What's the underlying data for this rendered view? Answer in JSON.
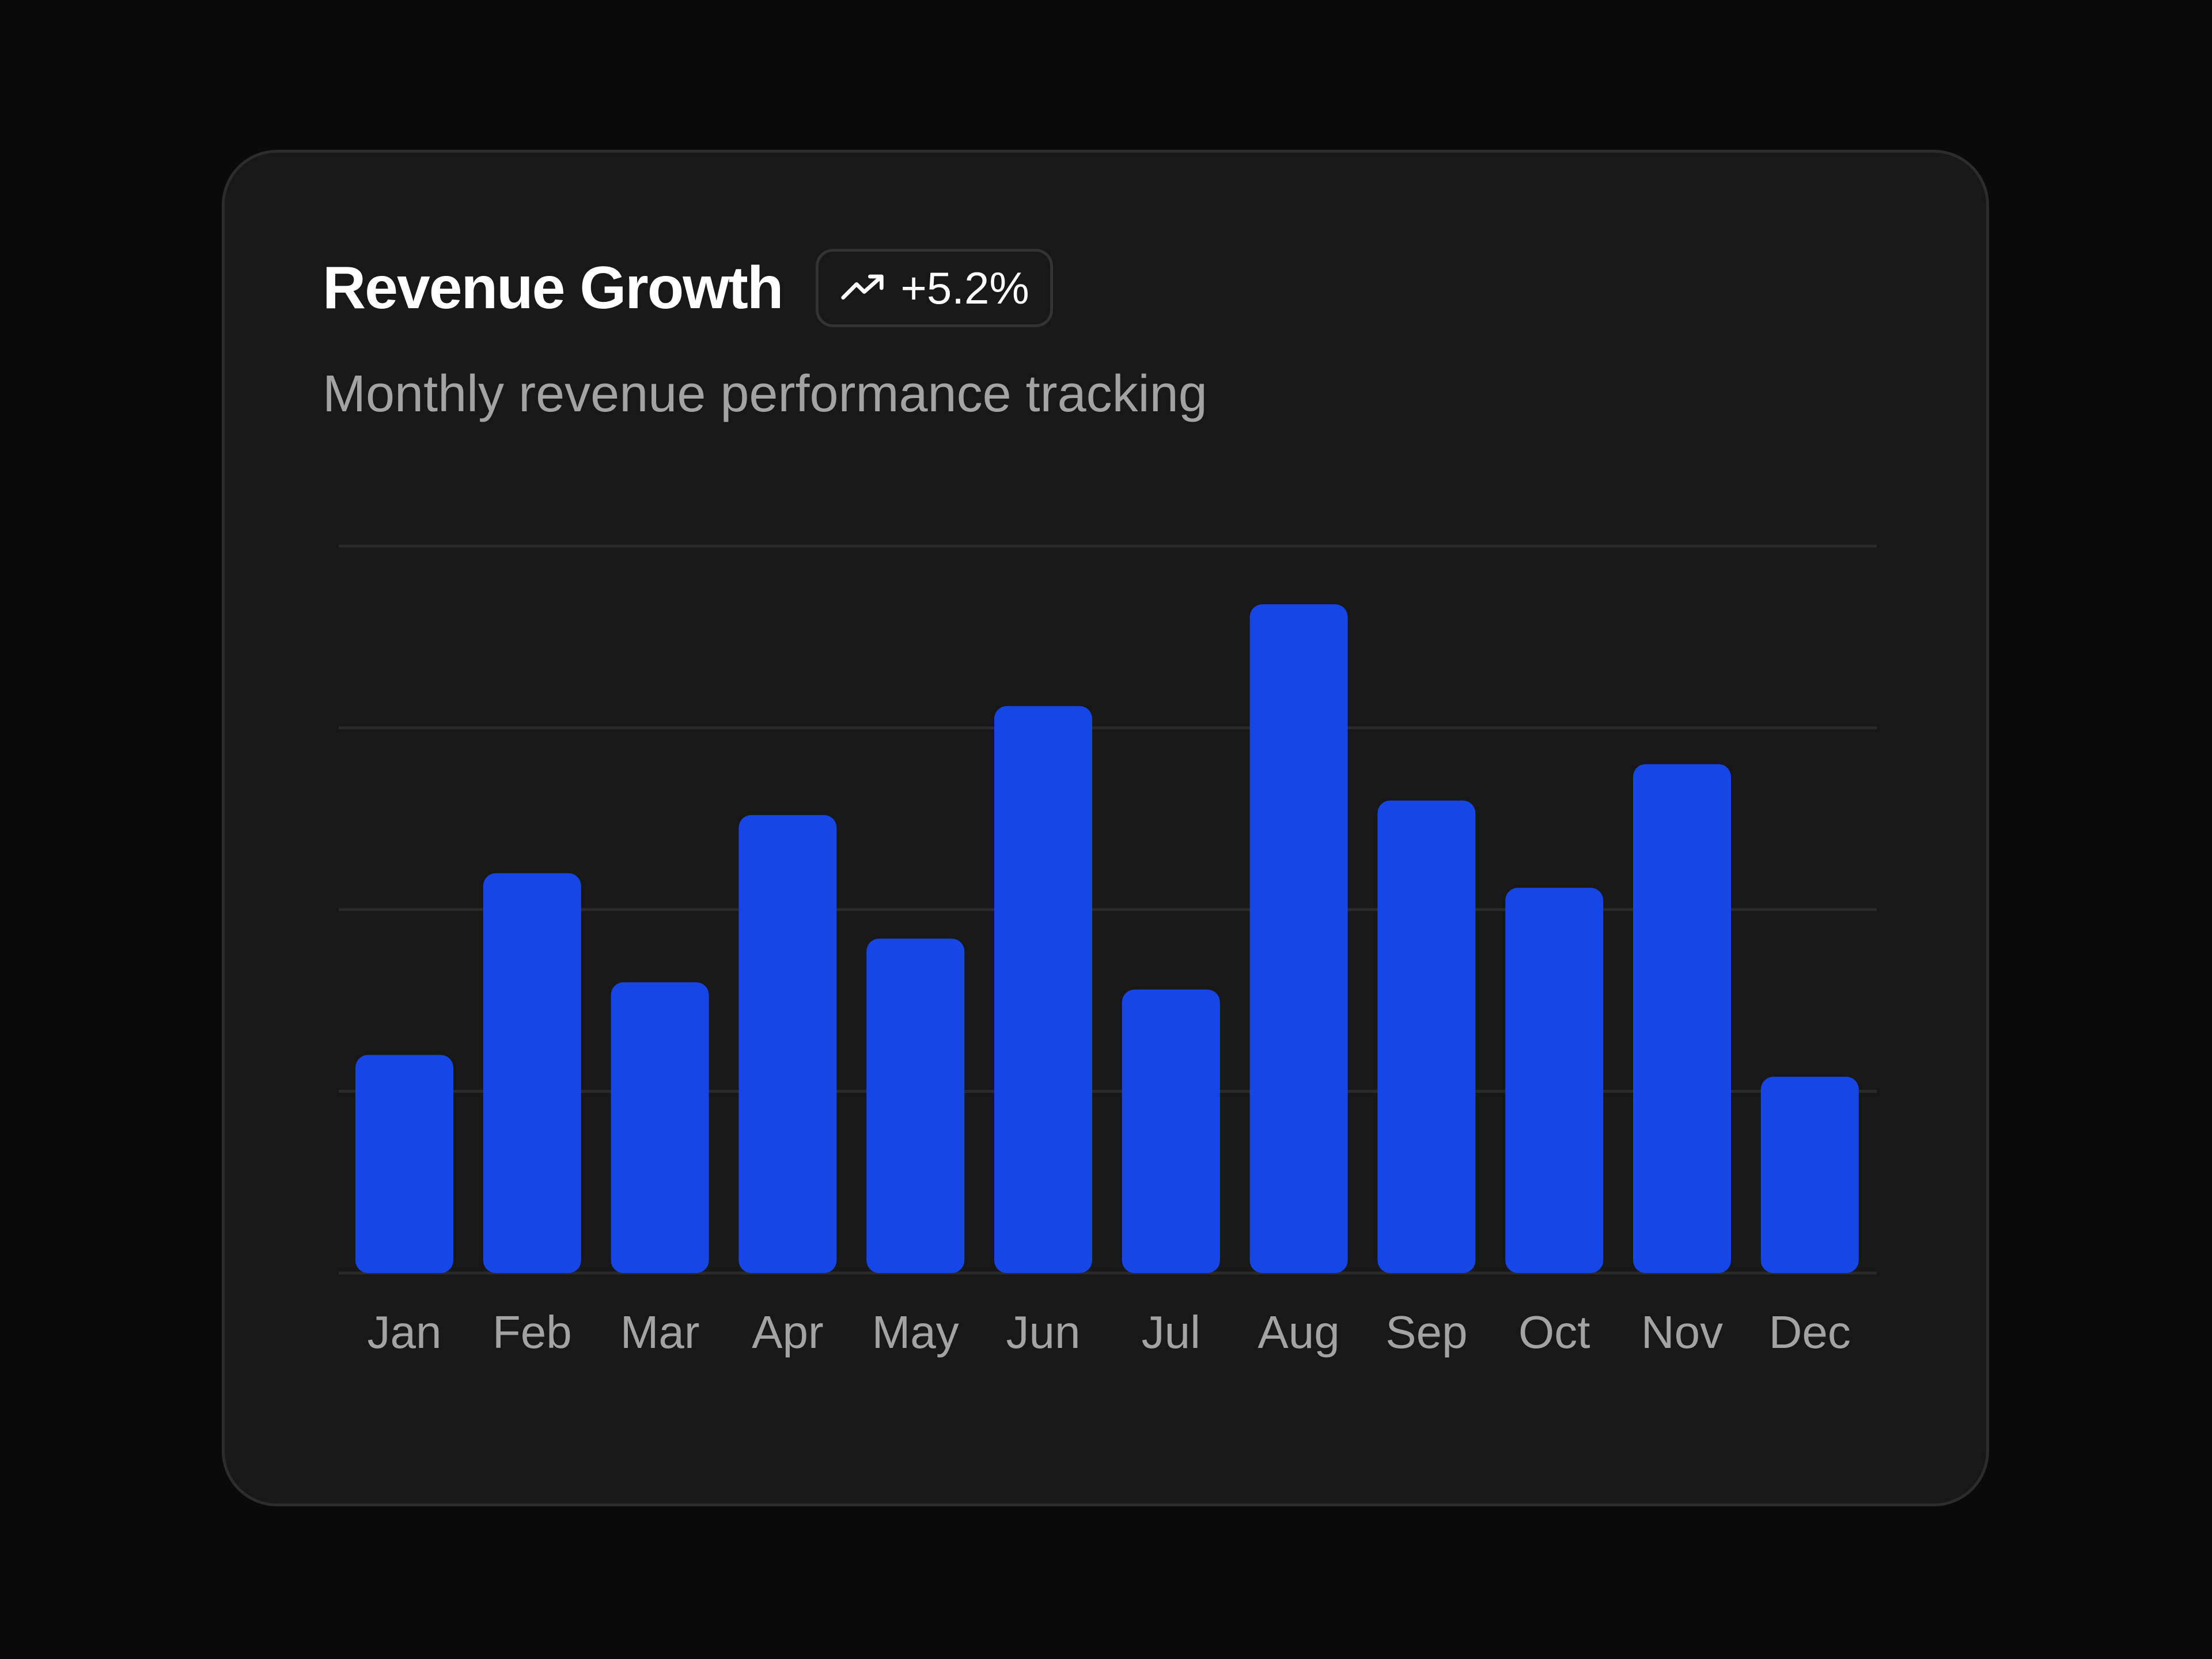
{
  "card": {
    "title": "Revenue Growth",
    "badge": {
      "text": "+5.2%",
      "icon": "trending-up-icon"
    },
    "subtitle": "Monthly revenue performance tracking"
  },
  "colors": {
    "background": "#0a0a0a",
    "card": "#181818",
    "bar": "#1647e6",
    "grid": "#2a2a2a",
    "label": "#a3a3a3"
  },
  "chart_data": {
    "type": "bar",
    "categories": [
      "Jan",
      "Feb",
      "Mar",
      "Apr",
      "May",
      "Jun",
      "Jul",
      "Aug",
      "Sep",
      "Oct",
      "Nov",
      "Dec"
    ],
    "values": [
      30,
      55,
      40,
      63,
      46,
      78,
      39,
      92,
      65,
      53,
      70,
      27
    ],
    "ylim": [
      0,
      100
    ],
    "grid": true,
    "xlabel": "",
    "ylabel": ""
  }
}
